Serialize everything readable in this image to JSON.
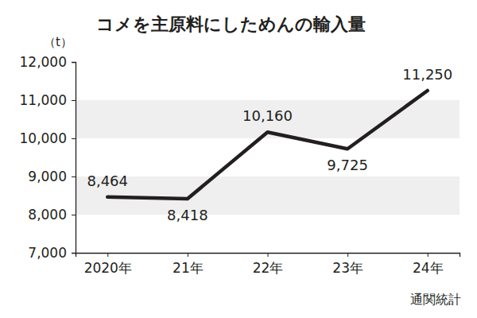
{
  "chart_data": {
    "type": "line",
    "title": "コメを主原料にしためんの輸入量",
    "y_label": "（t）",
    "source": "通関統計",
    "categories": [
      "2020年",
      "21年",
      "22年",
      "23年",
      "24年"
    ],
    "values": [
      8464,
      8418,
      10160,
      9725,
      11250
    ],
    "value_labels": [
      "8,464",
      "8,418",
      "10,160",
      "9,725",
      "11,250"
    ],
    "color": "#231f20",
    "ylim": [
      7000,
      12000
    ],
    "yticks": [
      {
        "value": 7000,
        "label": "7,000"
      },
      {
        "value": 8000,
        "label": "8,000"
      },
      {
        "value": 9000,
        "label": "9,000"
      },
      {
        "value": 10000,
        "label": "10,000"
      },
      {
        "value": 11000,
        "label": "11,000"
      },
      {
        "value": 12000,
        "label": "12,000"
      }
    ],
    "grid": true,
    "data_labels": true
  }
}
